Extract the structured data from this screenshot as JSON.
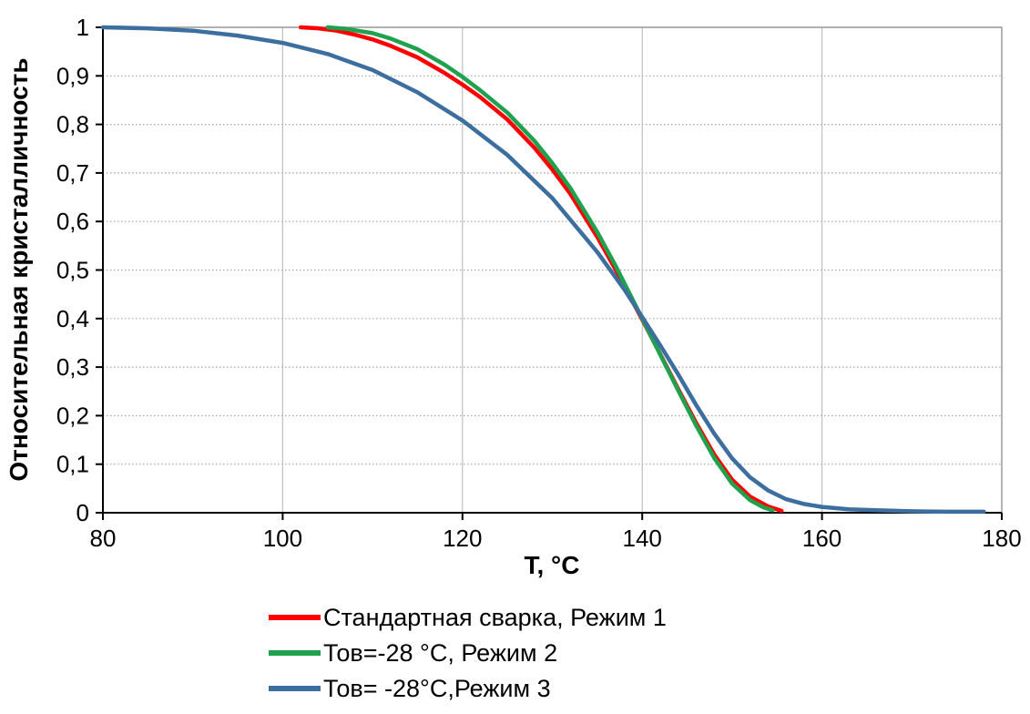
{
  "chart_data": {
    "type": "line",
    "title": "",
    "xlabel": "T, °C",
    "ylabel": "Относительная кристалличность",
    "xlim": [
      80,
      180
    ],
    "ylim": [
      0,
      1
    ],
    "x_ticks": [
      80,
      100,
      120,
      140,
      160,
      180
    ],
    "x_tick_labels": [
      "80",
      "100",
      "120",
      "140",
      "160",
      "180"
    ],
    "y_ticks": [
      0,
      0.1,
      0.2,
      0.3,
      0.4,
      0.5,
      0.6,
      0.7,
      0.8,
      0.9,
      1
    ],
    "y_tick_labels": [
      "0",
      "0,1",
      "0,2",
      "0,3",
      "0,4",
      "0,5",
      "0,6",
      "0,7",
      "0,8",
      "0,9",
      "1"
    ],
    "grid": "horizontal dotted, vertical solid light gray",
    "legend_position": "bottom-left",
    "colors": {
      "axis": "#000000",
      "h_grid": "#a6a6a6",
      "v_grid": "#c0c0c0",
      "border": "#8c8c8c"
    },
    "series": [
      {
        "id": "rezhim1",
        "name": "Стандартная сварка, Режим 1",
        "color": "#ff0000",
        "points": [
          [
            102,
            1
          ],
          [
            104,
            0.998
          ],
          [
            106,
            0.993
          ],
          [
            108,
            0.985
          ],
          [
            110,
            0.975
          ],
          [
            112,
            0.962
          ],
          [
            115,
            0.938
          ],
          [
            118,
            0.906
          ],
          [
            120,
            0.882
          ],
          [
            122,
            0.856
          ],
          [
            125,
            0.81
          ],
          [
            128,
            0.752
          ],
          [
            130,
            0.707
          ],
          [
            132,
            0.657
          ],
          [
            135,
            0.568
          ],
          [
            137,
            0.502
          ],
          [
            140,
            0.398
          ],
          [
            142,
            0.327
          ],
          [
            144,
            0.255
          ],
          [
            146,
            0.185
          ],
          [
            148,
            0.12
          ],
          [
            150,
            0.068
          ],
          [
            152,
            0.033
          ],
          [
            154,
            0.013
          ],
          [
            155.5,
            0.004
          ]
        ]
      },
      {
        "id": "rezhim2",
        "name": "Тов=-28 °C, Режим 2",
        "color": "#1fa14e",
        "points": [
          [
            105,
            1
          ],
          [
            107,
            0.997
          ],
          [
            110,
            0.988
          ],
          [
            112,
            0.977
          ],
          [
            115,
            0.955
          ],
          [
            118,
            0.923
          ],
          [
            120,
            0.898
          ],
          [
            122,
            0.87
          ],
          [
            125,
            0.824
          ],
          [
            128,
            0.766
          ],
          [
            130,
            0.72
          ],
          [
            132,
            0.669
          ],
          [
            135,
            0.578
          ],
          [
            137,
            0.51
          ],
          [
            140,
            0.4
          ],
          [
            142,
            0.326
          ],
          [
            144,
            0.252
          ],
          [
            146,
            0.18
          ],
          [
            148,
            0.113
          ],
          [
            150,
            0.06
          ],
          [
            152,
            0.026
          ],
          [
            153.5,
            0.011
          ],
          [
            154.5,
            0.005
          ]
        ]
      },
      {
        "id": "rezhim3",
        "name": "Тов= -28°C,Режим 3",
        "color": "#3c6e9f",
        "points": [
          [
            80,
            1
          ],
          [
            85,
            0.998
          ],
          [
            90,
            0.993
          ],
          [
            95,
            0.983
          ],
          [
            100,
            0.968
          ],
          [
            105,
            0.945
          ],
          [
            110,
            0.912
          ],
          [
            115,
            0.866
          ],
          [
            120,
            0.808
          ],
          [
            125,
            0.737
          ],
          [
            130,
            0.648
          ],
          [
            135,
            0.537
          ],
          [
            138,
            0.46
          ],
          [
            140,
            0.403
          ],
          [
            142,
            0.345
          ],
          [
            144,
            0.285
          ],
          [
            146,
            0.222
          ],
          [
            148,
            0.163
          ],
          [
            150,
            0.112
          ],
          [
            152,
            0.073
          ],
          [
            154,
            0.046
          ],
          [
            156,
            0.028
          ],
          [
            158,
            0.018
          ],
          [
            160,
            0.012
          ],
          [
            163,
            0.007
          ],
          [
            166,
            0.005
          ],
          [
            170,
            0.003
          ],
          [
            174,
            0.002
          ],
          [
            178,
            0.002
          ]
        ]
      }
    ]
  }
}
